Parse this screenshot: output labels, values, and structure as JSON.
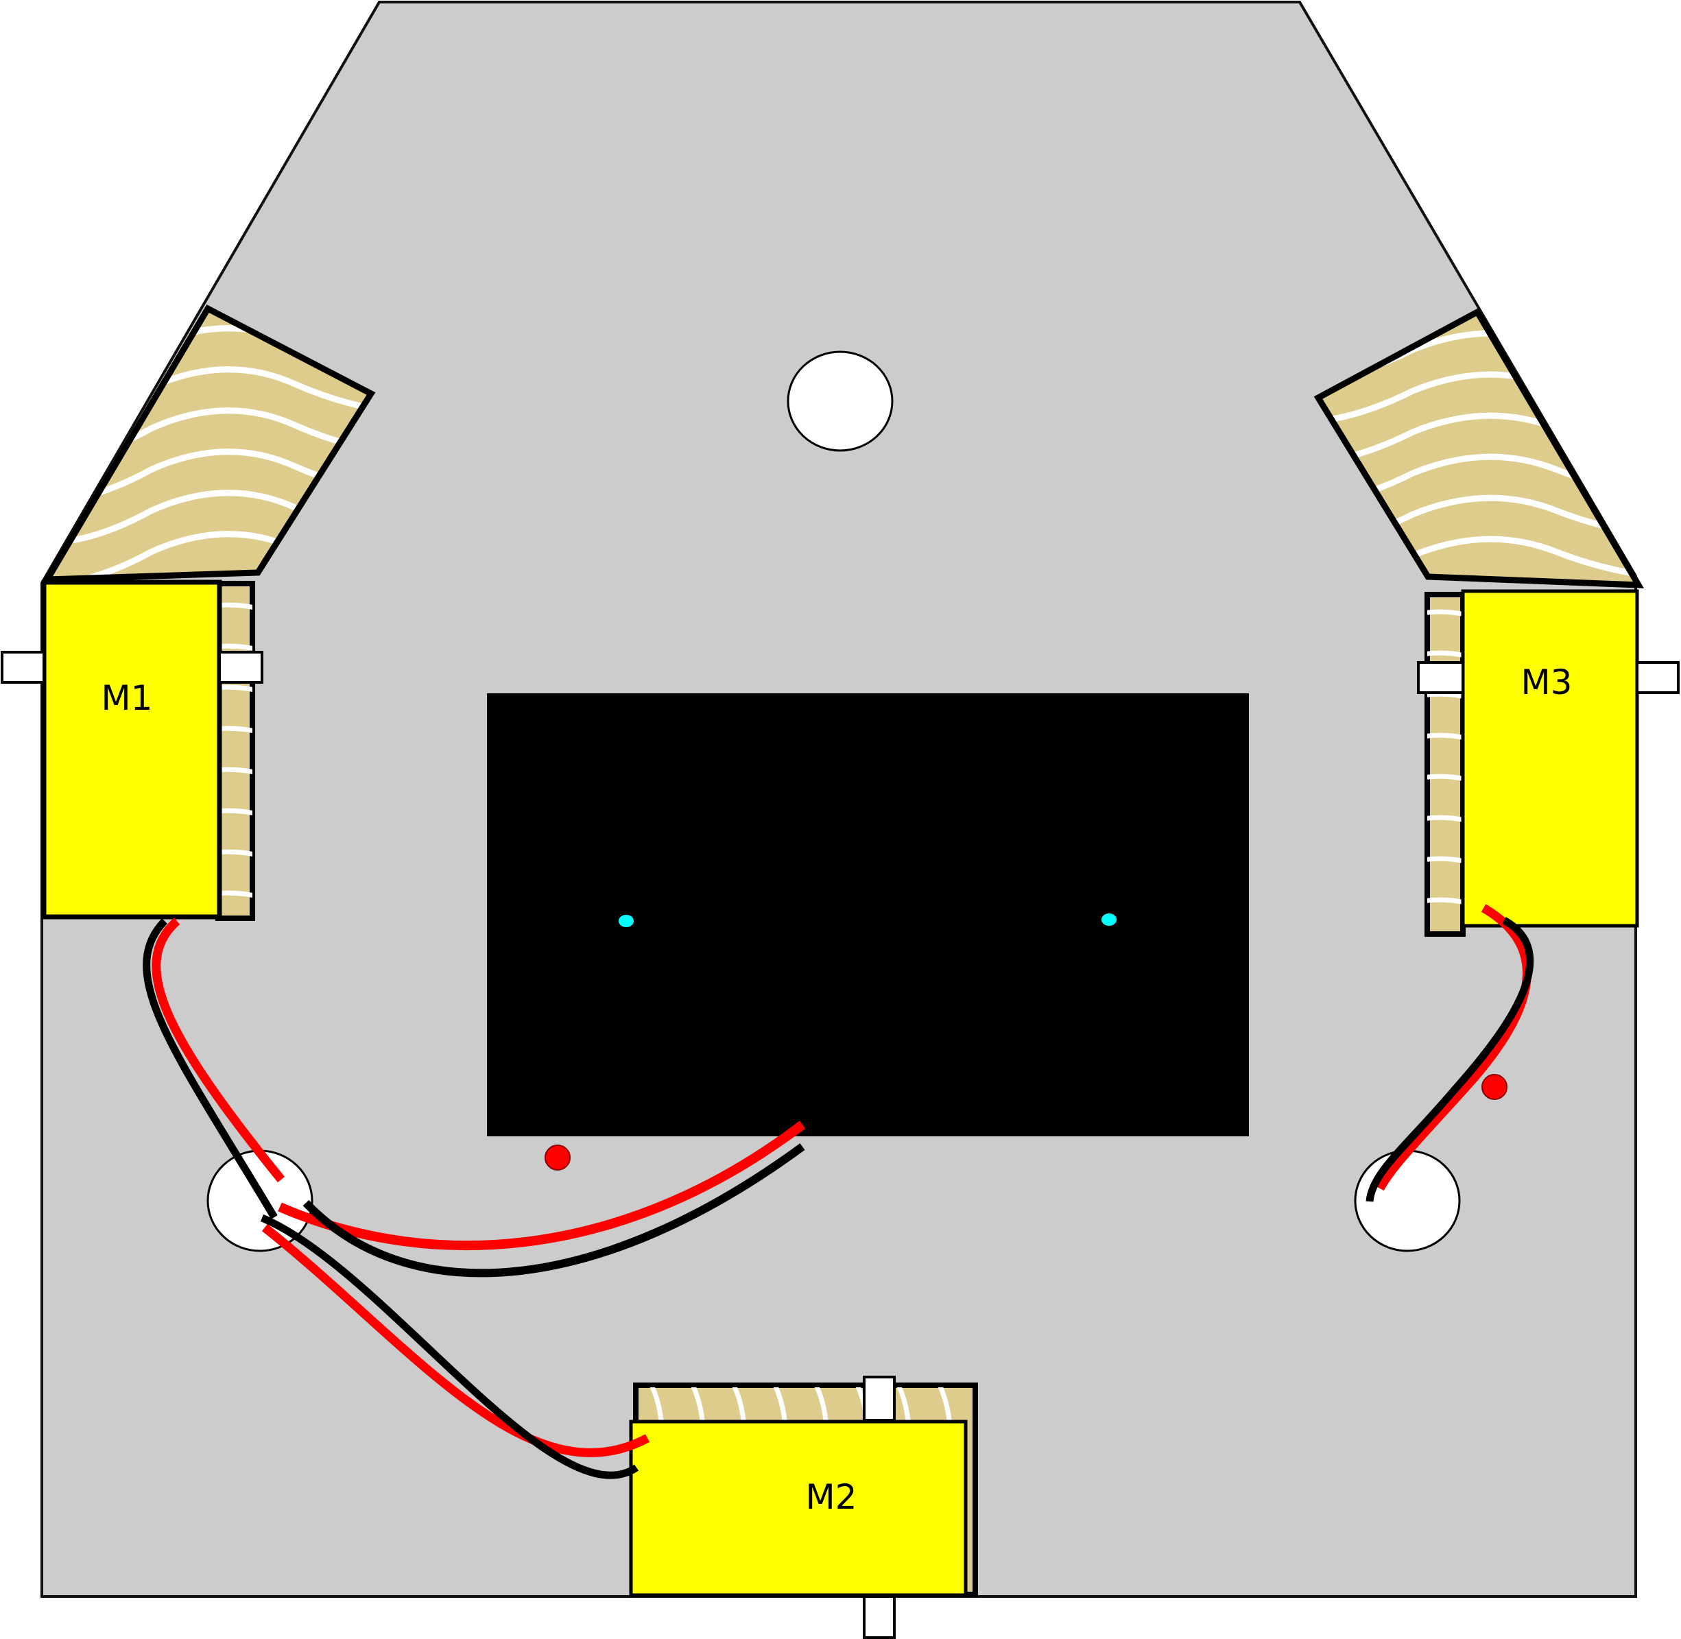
{
  "motors": {
    "m1": {
      "label": "M1"
    },
    "m2": {
      "label": "M2"
    },
    "m3": {
      "label": "M3"
    }
  },
  "colors": {
    "chassis": "#cccccc",
    "wood": "#ddcc8c",
    "motor_body": "#ffff00",
    "board": "#000000",
    "wire_positive": "#ff0000",
    "wire_negative": "#000000",
    "indicator_led": "#00ffff",
    "marker_dot": "#ff0000",
    "hole": "#ffffff"
  }
}
